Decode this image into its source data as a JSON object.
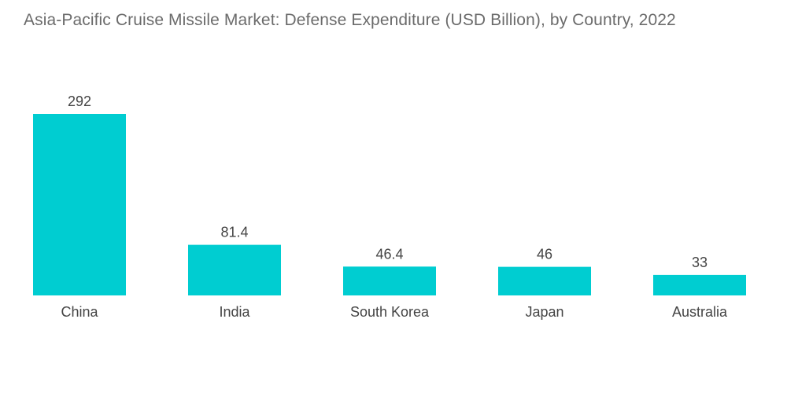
{
  "chart_data": {
    "type": "bar",
    "title": "Asia-Pacific Cruise Missile Market: Defense Expenditure (USD Billion), by Country, 2022",
    "categories": [
      "China",
      "India",
      "South Korea",
      "Japan",
      "Australia"
    ],
    "values": [
      292,
      81.4,
      46.4,
      46,
      33
    ],
    "value_labels": [
      "292",
      "81.4",
      "46.4",
      "46",
      "33"
    ],
    "xlabel": "",
    "ylabel": "",
    "ylim": [
      0,
      292
    ],
    "grid": false,
    "legend": "none",
    "bar_color": "#00cdd1"
  }
}
